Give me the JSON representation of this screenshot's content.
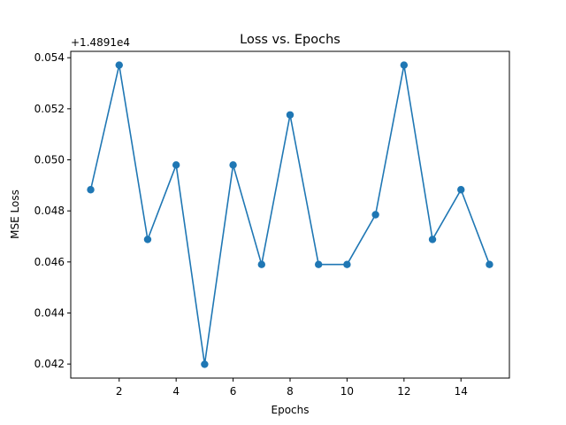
{
  "chart_data": {
    "type": "line",
    "title": "Loss vs. Epochs",
    "xlabel": "Epochs",
    "ylabel": "MSE Loss",
    "offset_text": "+1.4891e4",
    "x": [
      1,
      2,
      3,
      4,
      5,
      6,
      7,
      8,
      9,
      10,
      11,
      12,
      13,
      14,
      15
    ],
    "series": [
      {
        "values": [
          0.04883,
          0.05371,
          0.04688,
          0.0498,
          0.04199,
          0.0498,
          0.0459,
          0.05176,
          0.0459,
          0.0459,
          0.04785,
          0.05371,
          0.04688,
          0.04883,
          0.0459
        ],
        "color": "#1f77b4",
        "marker": "circle"
      }
    ],
    "xlim": [
      0.3,
      15.7
    ],
    "ylim": [
      0.04145,
      0.05425
    ],
    "xticks": [
      "2",
      "4",
      "6",
      "8",
      "10",
      "12",
      "14"
    ],
    "yticks": [
      "0.042",
      "0.044",
      "0.046",
      "0.048",
      "0.050",
      "0.052",
      "0.054"
    ],
    "grid": false,
    "legend": "none"
  }
}
